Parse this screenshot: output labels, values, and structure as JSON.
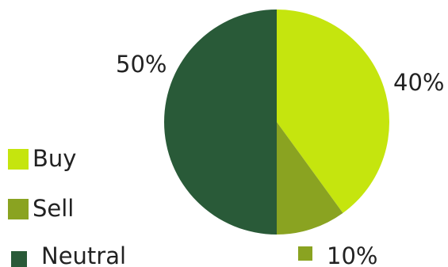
{
  "chart_data": {
    "type": "pie",
    "slices": [
      {
        "label": "Buy",
        "value": 40,
        "display": "40%",
        "color": "#c5e50e"
      },
      {
        "label": "Sell",
        "value": 10,
        "display": "10%",
        "color": "#8aa321"
      },
      {
        "label": "Neutral",
        "value": 50,
        "display": "50%",
        "color": "#295a38"
      }
    ],
    "legend": {
      "placement": "left",
      "entries": [
        {
          "label": "Buy",
          "color": "#c5e50e"
        },
        {
          "label": "Sell",
          "color": "#8aa321"
        },
        {
          "label": "Neutral",
          "color": "#295a38"
        }
      ]
    },
    "start_angle": "12 o'clock",
    "direction": "clockwise"
  }
}
